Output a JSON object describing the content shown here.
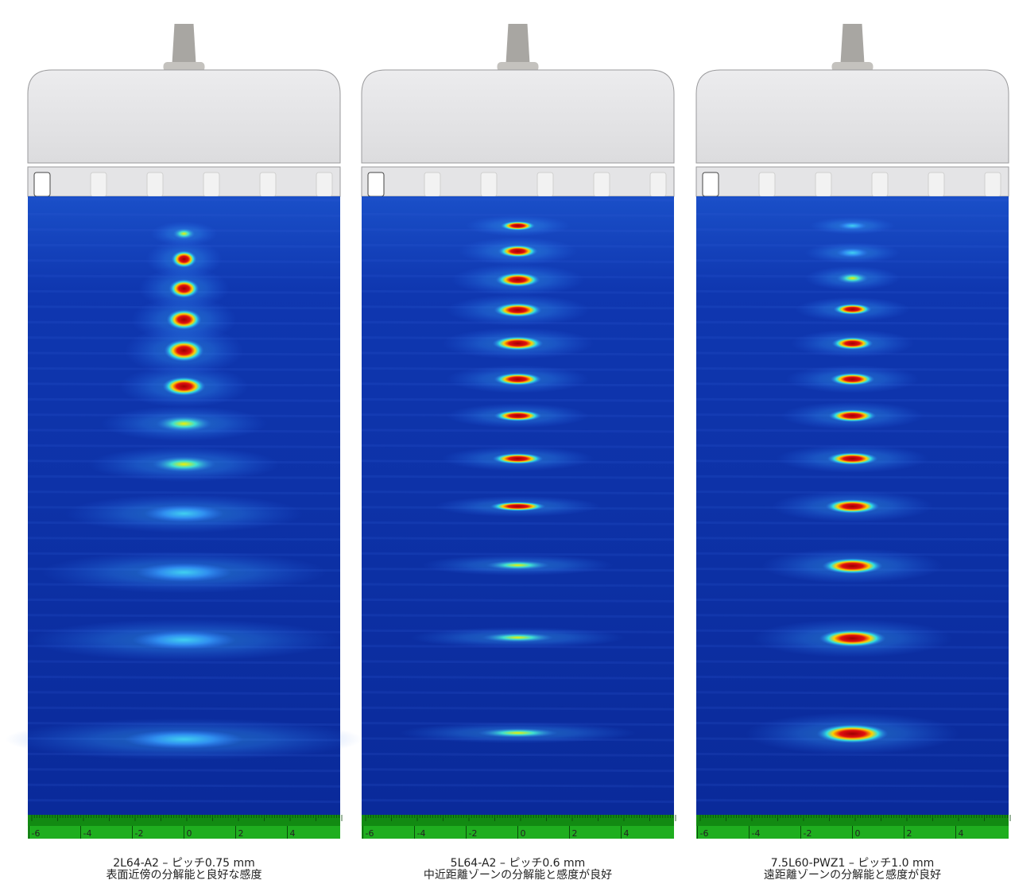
{
  "panels": [
    {
      "caption": [
        "2L64-A2 – ピッチ0.75 mm",
        "表面近傍の分解能と良好な感度"
      ],
      "ruler": [
        -6,
        -4,
        -2,
        0,
        2,
        4
      ]
    },
    {
      "caption": [
        "5L64-A2 – ピッチ0.6 mm",
        "中近距離ゾーンの分解能と感度が良好"
      ],
      "ruler": [
        -6,
        -4,
        -2,
        0,
        2,
        4
      ]
    },
    {
      "caption": [
        "7.5L60-PWZ1 – ピッチ1.0 mm",
        "遠距離ゾーンの分解能と感度が良好"
      ],
      "ruler": [
        -6,
        -4,
        -2,
        0,
        2,
        4
      ]
    }
  ]
}
